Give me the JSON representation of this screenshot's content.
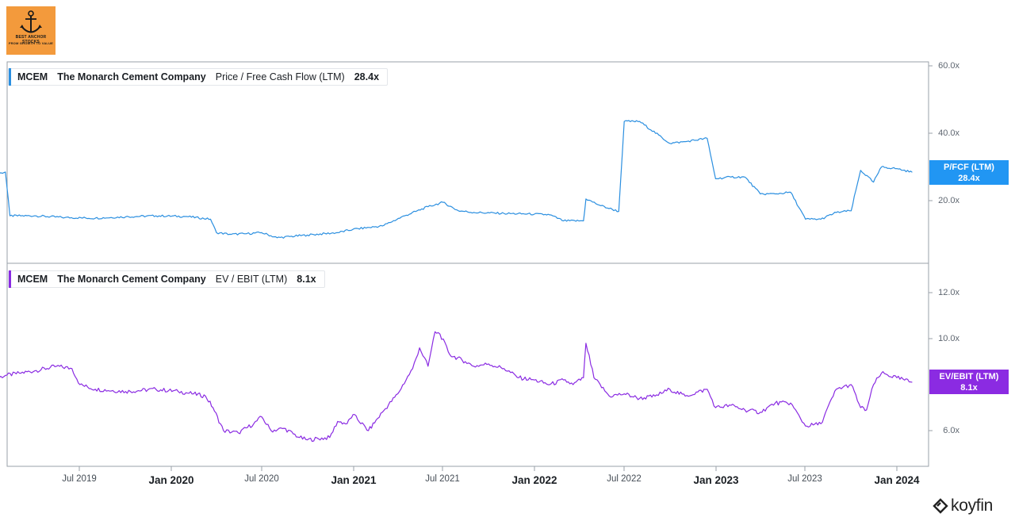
{
  "logo": {
    "title": "BEST ANCHOR STOCKS",
    "subtitle": "FROM GROWTH TO VALUE"
  },
  "brand": {
    "name": "koyfin"
  },
  "colors": {
    "pfcf": "#2b8fe0",
    "evebit": "#8a2be2",
    "pfcf_badge": "#2196f3",
    "evebit_badge": "#8b2be2",
    "grid": "#e6e8eb",
    "axis": "#9aa1a8"
  },
  "chart_data": [
    {
      "type": "line",
      "ticker": "MCEM",
      "company": "The Monarch Cement Company",
      "metric": "Price / Free Cash Flow (LTM)",
      "current_value": "28.4x",
      "badge_label": "P/FCF (LTM)",
      "badge_value": "28.4x",
      "y_ticks": [
        "60.0x",
        "40.0x",
        "20.0x"
      ],
      "y_tick_values": [
        60,
        40,
        20
      ],
      "ylim": [
        5,
        60
      ],
      "x_ticks": [
        "Jul 2019",
        "Jan 2020",
        "Jul 2020",
        "Jan 2021",
        "Jul 2021",
        "Jan 2022",
        "Jul 2022",
        "Jan 2023",
        "Jul 2023",
        "Jan 2024"
      ],
      "year_ticks": [
        "Jan 2020",
        "Jan 2021",
        "Jan 2022",
        "Jan 2023",
        "Jan 2024"
      ],
      "series": [
        {
          "x": [
            "2019-01-01",
            "2019-02-01",
            "2019-02-10",
            "2019-04-01",
            "2019-06-01",
            "2019-08-01",
            "2019-10-01",
            "2019-12-01",
            "2020-02-01",
            "2020-03-20",
            "2020-04-01",
            "2020-05-01",
            "2020-06-01",
            "2020-07-01",
            "2020-08-01",
            "2020-10-01",
            "2020-12-01",
            "2021-01-01",
            "2021-03-01",
            "2021-04-15",
            "2021-06-01",
            "2021-07-01",
            "2021-08-01",
            "2021-09-01",
            "2021-11-01",
            "2022-01-01",
            "2022-02-01",
            "2022-03-01",
            "2022-04-10",
            "2022-04-15",
            "2022-05-15",
            "2022-06-20",
            "2022-07-01",
            "2022-08-01",
            "2022-10-01",
            "2022-11-01",
            "2022-12-15",
            "2023-01-01",
            "2023-02-01",
            "2023-03-01",
            "2023-04-01",
            "2023-05-01",
            "2023-06-01",
            "2023-07-01",
            "2023-08-01",
            "2023-09-01",
            "2023-10-01",
            "2023-10-20",
            "2023-11-15",
            "2023-12-01",
            "2024-01-01",
            "2024-02-01"
          ],
          "y": [
            27.5,
            28.5,
            15.5,
            15.5,
            15.0,
            14.8,
            15.2,
            15.5,
            15.3,
            14.5,
            10.5,
            10.0,
            10.2,
            10.5,
            9.0,
            9.8,
            10.5,
            11.5,
            12.5,
            15.5,
            18.2,
            19.5,
            17.0,
            16.5,
            16.2,
            16.0,
            15.8,
            14.0,
            14.0,
            20.5,
            18.5,
            16.8,
            43.5,
            43.5,
            37.0,
            37.5,
            38.5,
            26.5,
            27.0,
            27.0,
            22.0,
            22.0,
            22.5,
            14.5,
            14.5,
            16.5,
            17.0,
            29.0,
            25.5,
            30.0,
            29.5,
            28.4
          ]
        }
      ]
    },
    {
      "type": "line",
      "ticker": "MCEM",
      "company": "The Monarch Cement Company",
      "metric": "EV / EBIT (LTM)",
      "current_value": "8.1x",
      "badge_label": "EV/EBIT (LTM)",
      "badge_value": "8.1x",
      "y_ticks": [
        "12.0x",
        "10.0x",
        "6.0x"
      ],
      "y_tick_values": [
        12,
        10,
        6
      ],
      "ylim": [
        4.5,
        12.5
      ],
      "series": [
        {
          "x": [
            "2019-01-01",
            "2019-02-01",
            "2019-03-01",
            "2019-04-01",
            "2019-05-15",
            "2019-06-15",
            "2019-07-01",
            "2019-08-01",
            "2019-10-01",
            "2019-12-01",
            "2020-01-15",
            "2020-02-15",
            "2020-03-10",
            "2020-03-25",
            "2020-04-15",
            "2020-05-15",
            "2020-06-15",
            "2020-07-01",
            "2020-07-20",
            "2020-08-15",
            "2020-09-15",
            "2020-10-01",
            "2020-11-15",
            "2020-12-01",
            "2020-12-20",
            "2021-01-01",
            "2021-02-01",
            "2021-03-01",
            "2021-04-01",
            "2021-05-01",
            "2021-05-15",
            "2021-06-01",
            "2021-06-15",
            "2021-06-25",
            "2021-07-15",
            "2021-08-15",
            "2021-09-01",
            "2021-10-01",
            "2021-11-01",
            "2021-12-01",
            "2022-01-01",
            "2022-02-01",
            "2022-03-01",
            "2022-03-20",
            "2022-04-10",
            "2022-04-15",
            "2022-05-01",
            "2022-06-01",
            "2022-07-01",
            "2022-08-01",
            "2022-09-01",
            "2022-10-01",
            "2022-11-01",
            "2022-12-15",
            "2023-01-01",
            "2023-02-01",
            "2023-03-01",
            "2023-04-01",
            "2023-05-01",
            "2023-06-01",
            "2023-07-01",
            "2023-08-01",
            "2023-09-01",
            "2023-10-01",
            "2023-10-20",
            "2023-11-01",
            "2023-11-15",
            "2023-12-01",
            "2024-01-01",
            "2024-02-01"
          ],
          "y": [
            8.2,
            8.4,
            8.5,
            8.6,
            8.8,
            8.7,
            8.0,
            7.8,
            7.7,
            7.8,
            7.7,
            7.6,
            7.5,
            7.0,
            6.0,
            5.9,
            6.3,
            6.6,
            6.0,
            6.1,
            5.7,
            5.6,
            5.7,
            6.4,
            6.3,
            6.7,
            6.0,
            6.8,
            7.6,
            8.7,
            9.6,
            8.8,
            10.3,
            10.2,
            9.3,
            9.0,
            8.8,
            8.9,
            8.7,
            8.3,
            8.2,
            8.0,
            8.2,
            8.0,
            8.3,
            9.8,
            8.3,
            7.5,
            7.6,
            7.4,
            7.5,
            7.8,
            7.5,
            7.8,
            7.0,
            7.1,
            6.9,
            6.8,
            7.2,
            7.2,
            6.2,
            6.3,
            7.8,
            8.0,
            7.0,
            6.9,
            8.0,
            8.5,
            8.3,
            8.1
          ]
        }
      ]
    }
  ]
}
